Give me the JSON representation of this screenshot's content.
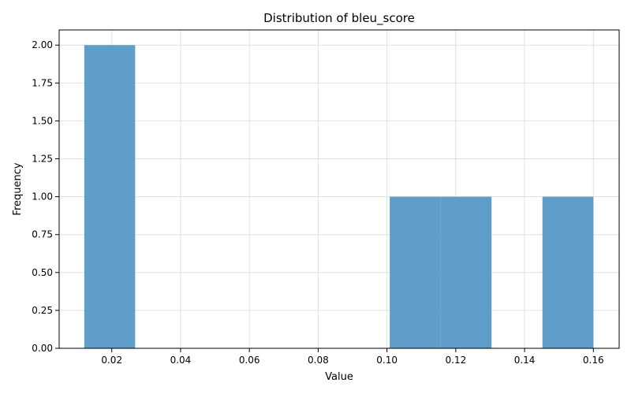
{
  "chart_data": {
    "type": "bar",
    "title": "Distribution of bleu_score",
    "xlabel": "Value",
    "ylabel": "Frequency",
    "xlim": [
      0.0047,
      0.1675
    ],
    "ylim": [
      0,
      2.1
    ],
    "xticks": [
      "0.02",
      "0.04",
      "0.06",
      "0.08",
      "0.10",
      "0.12",
      "0.14",
      "0.16"
    ],
    "xtick_values": [
      0.02,
      0.04,
      0.06,
      0.08,
      0.1,
      0.12,
      0.14,
      0.16
    ],
    "yticks": [
      "0.00",
      "0.25",
      "0.50",
      "0.75",
      "1.00",
      "1.25",
      "1.50",
      "1.75",
      "2.00"
    ],
    "ytick_values": [
      0,
      0.25,
      0.5,
      0.75,
      1.0,
      1.25,
      1.5,
      1.75,
      2.0
    ],
    "bins": [
      {
        "start": 0.012,
        "end": 0.0268,
        "count": 2
      },
      {
        "start": 0.0268,
        "end": 0.0416,
        "count": 0
      },
      {
        "start": 0.0416,
        "end": 0.0564,
        "count": 0
      },
      {
        "start": 0.0564,
        "end": 0.0712,
        "count": 0
      },
      {
        "start": 0.0712,
        "end": 0.086,
        "count": 0
      },
      {
        "start": 0.086,
        "end": 0.1008,
        "count": 0
      },
      {
        "start": 0.1008,
        "end": 0.1156,
        "count": 1
      },
      {
        "start": 0.1156,
        "end": 0.1304,
        "count": 1
      },
      {
        "start": 0.1304,
        "end": 0.1452,
        "count": 0
      },
      {
        "start": 0.1452,
        "end": 0.16,
        "count": 1
      }
    ],
    "grid": true,
    "bar_color": "#5f9ec9",
    "grid_color": "#e0e0e0",
    "axis_color": "#000000"
  }
}
